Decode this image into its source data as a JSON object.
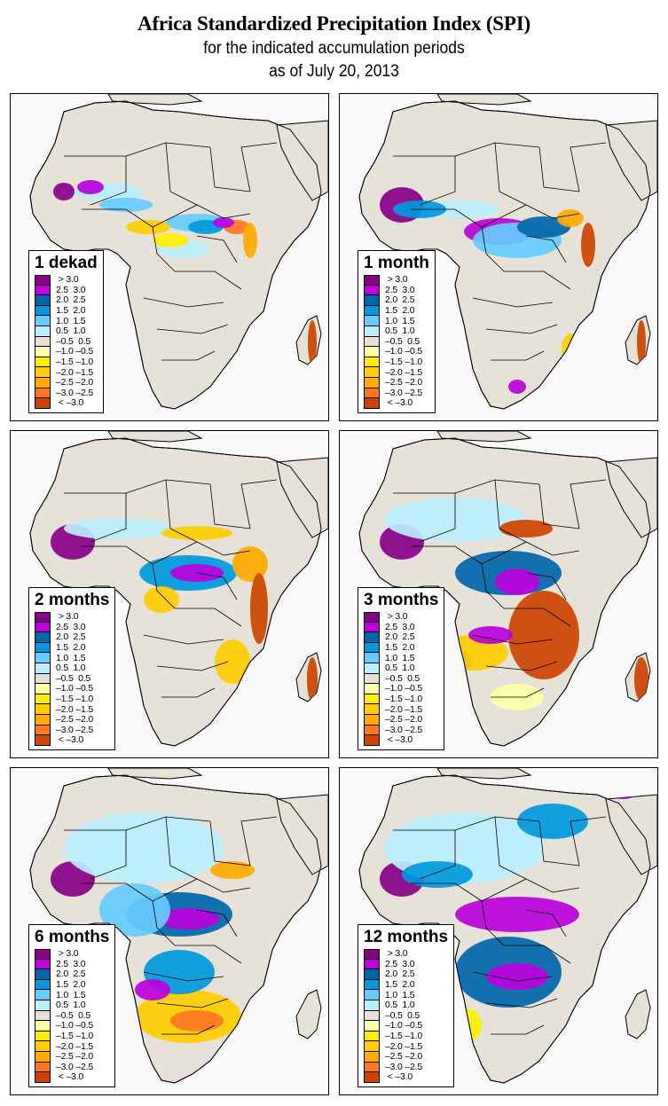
{
  "header": {
    "title": "Africa Standardized Precipitation Index (SPI)",
    "subtitle": "for the indicated accumulation periods",
    "date_line": "as of July 20, 2013"
  },
  "legend": {
    "classes": [
      {
        "label": " > 3.0",
        "color": "#880088"
      },
      {
        "label": "2.5  3.0",
        "color": "#bb00dd"
      },
      {
        "label": "2.0  2.5",
        "color": "#0066aa"
      },
      {
        "label": "1.5  2.0",
        "color": "#0099dd"
      },
      {
        "label": "1.0  1.5",
        "color": "#66ccff"
      },
      {
        "label": "0.5  1.0",
        "color": "#bbeeff"
      },
      {
        "label": "–0.5  0.5",
        "color": "#e6e2d8"
      },
      {
        "label": "–1.0 –0.5",
        "color": "#ffffaa"
      },
      {
        "label": "–1.5 –1.0",
        "color": "#ffee00"
      },
      {
        "label": "–2.0 –1.5",
        "color": "#ffcc00"
      },
      {
        "label": "–2.5 –2.0",
        "color": "#ffaa00"
      },
      {
        "label": "–3.0 –2.5",
        "color": "#ff7722"
      },
      {
        "label": " < –3.0",
        "color": "#cc4400"
      }
    ]
  },
  "colors": {
    "ocean": "#fafafa",
    "land_near_normal": "#e6e2d8",
    "border": "#000000"
  },
  "panels": [
    {
      "period": "1 dekad"
    },
    {
      "period": "1 month"
    },
    {
      "period": "2 months"
    },
    {
      "period": "3 months"
    },
    {
      "period": "6 months"
    },
    {
      "period": "12 months"
    }
  ]
}
